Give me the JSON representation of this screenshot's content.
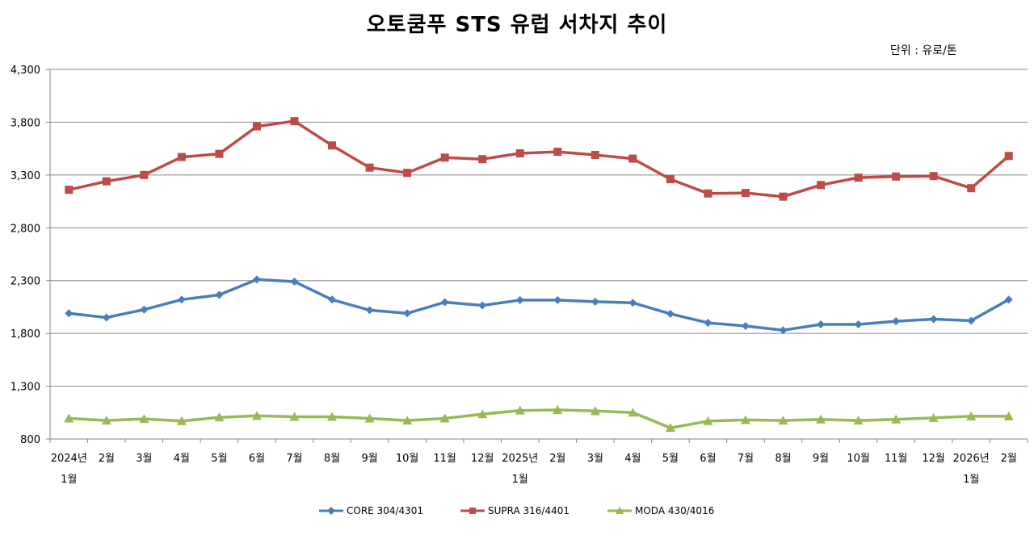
{
  "title": "오토쿰푸 STS 유럽 서차지 추이",
  "unit": "단위 : 유로/톤",
  "chart_data": {
    "type": "line",
    "categories": [
      [
        "2024년",
        "1월"
      ],
      [
        "2월"
      ],
      [
        "3월"
      ],
      [
        "4월"
      ],
      [
        "5월"
      ],
      [
        "6월"
      ],
      [
        "7월"
      ],
      [
        "8월"
      ],
      [
        "9월"
      ],
      [
        "10월"
      ],
      [
        "11월"
      ],
      [
        "12월"
      ],
      [
        "2025년",
        "1월"
      ],
      [
        "2월"
      ],
      [
        "3월"
      ],
      [
        "4월"
      ],
      [
        "5월"
      ],
      [
        "6월"
      ],
      [
        "7월"
      ],
      [
        "8월"
      ],
      [
        "9월"
      ],
      [
        "10월"
      ],
      [
        "11월"
      ],
      [
        "12월"
      ],
      [
        "2026년",
        "1월"
      ],
      [
        "2월"
      ]
    ],
    "ylim": [
      800,
      4300
    ],
    "yticks": [
      "4,300",
      "3,800",
      "3,300",
      "2,800",
      "2,300",
      "1,800",
      "1,300",
      "800"
    ],
    "yticks_values": [
      4300,
      3800,
      3300,
      2800,
      2300,
      1800,
      1300,
      800
    ],
    "grid": true,
    "legend_position": "bottom",
    "series": [
      {
        "name": "CORE 304/4301",
        "color": "#4A7EBB",
        "marker": "diamond",
        "values": [
          1990,
          1950,
          2025,
          2120,
          2165,
          2310,
          2290,
          2120,
          2020,
          1990,
          2095,
          2065,
          2115,
          2115,
          2100,
          2090,
          1985,
          1900,
          1870,
          1830,
          1885,
          1885,
          1915,
          1935,
          1920,
          2120
        ]
      },
      {
        "name": "SUPRA 316/4401",
        "color": "#BE4B48",
        "marker": "square",
        "values": [
          3160,
          3240,
          3300,
          3470,
          3500,
          3760,
          3810,
          3580,
          3370,
          3320,
          3465,
          3450,
          3505,
          3520,
          3490,
          3455,
          3260,
          3125,
          3130,
          3095,
          3205,
          3275,
          3285,
          3290,
          3175,
          3480
        ]
      },
      {
        "name": "MODA 430/4016",
        "color": "#98B954",
        "marker": "triangle",
        "values": [
          995,
          975,
          990,
          970,
          1005,
          1020,
          1010,
          1010,
          995,
          975,
          995,
          1035,
          1070,
          1075,
          1065,
          1050,
          905,
          970,
          980,
          975,
          985,
          975,
          985,
          1000,
          1015,
          1015
        ]
      }
    ]
  }
}
